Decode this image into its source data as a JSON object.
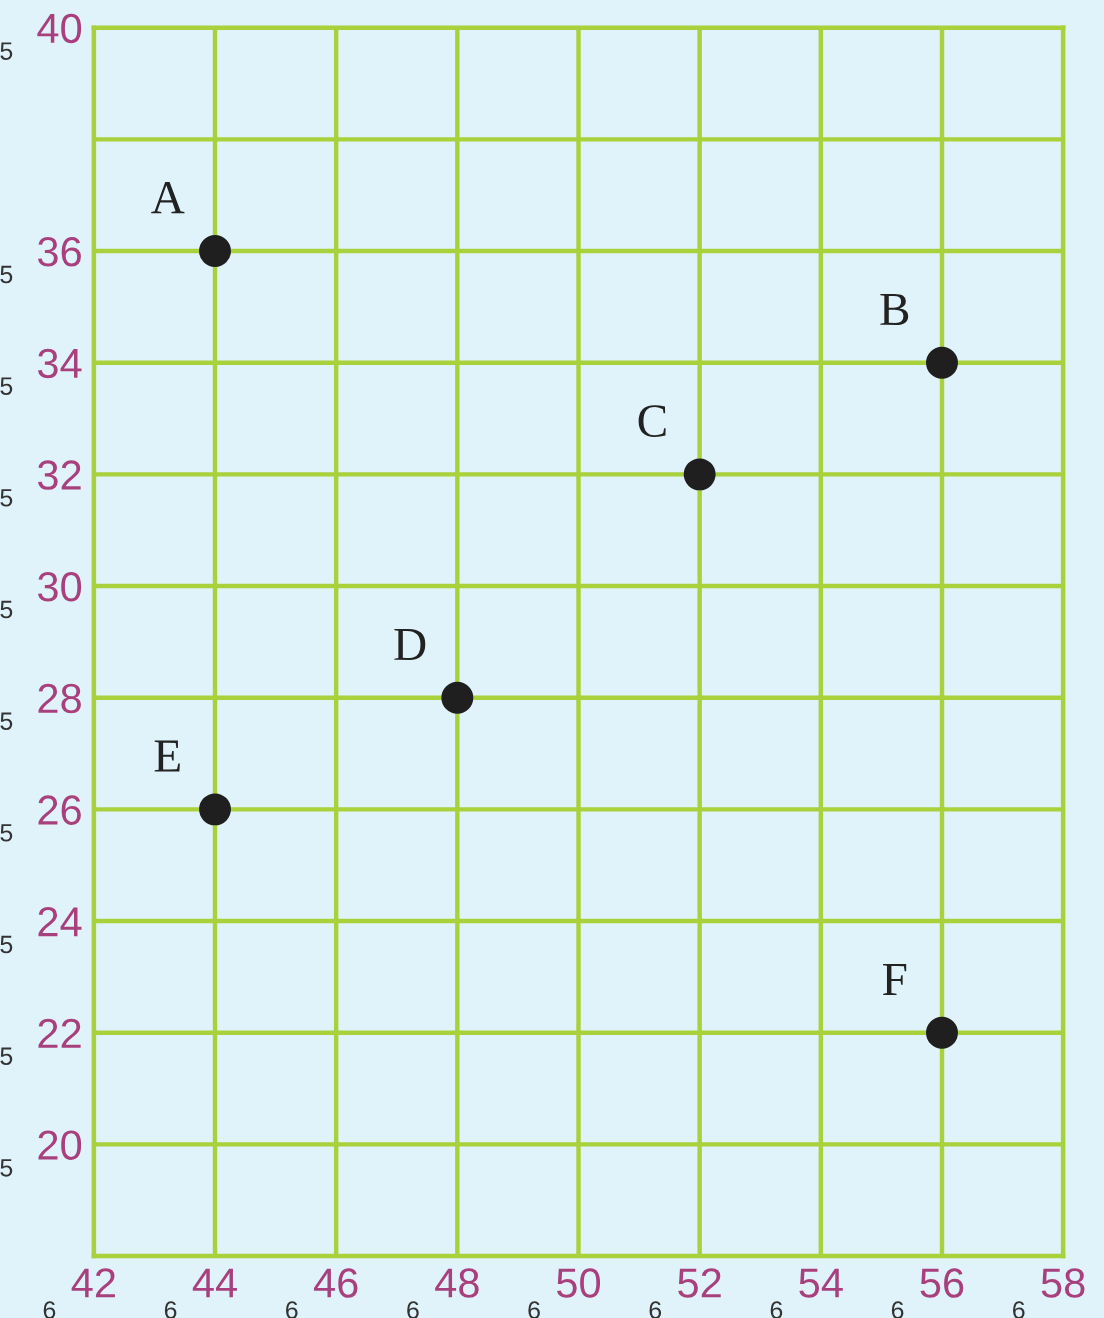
{
  "chart_data": {
    "type": "scatter",
    "x": [
      44,
      56,
      52,
      48,
      44,
      56
    ],
    "values": [
      36,
      34,
      32,
      28,
      26,
      22
    ],
    "color": "#1f1f1f",
    "marker": "circle",
    "xlim": [
      42,
      58
    ],
    "ylim": [
      18,
      40
    ],
    "xticks": [
      42,
      44,
      46,
      48,
      50,
      52,
      54,
      56,
      58
    ],
    "yticks": [
      20,
      22,
      24,
      26,
      28,
      30,
      32,
      34,
      36,
      {
        "value": 38,
        "label": null
      },
      40
    ],
    "grid": true,
    "annotations": [
      "5",
      "5",
      "5",
      "5",
      "5",
      "5",
      "5",
      "5",
      "5",
      "5",
      "6",
      "6",
      "6",
      "6",
      "6",
      "6",
      "6",
      "6",
      "6",
      {
        "text": "A",
        "x": 44,
        "y": 36
      },
      {
        "text": "B",
        "x": 56,
        "y": 34
      },
      {
        "text": "C",
        "x": 52,
        "y": 32
      },
      {
        "text": "D",
        "x": 48,
        "y": 28
      },
      {
        "text": "E",
        "x": 44,
        "y": 26
      },
      {
        "text": "F",
        "x": 56,
        "y": 22
      }
    ]
  }
}
